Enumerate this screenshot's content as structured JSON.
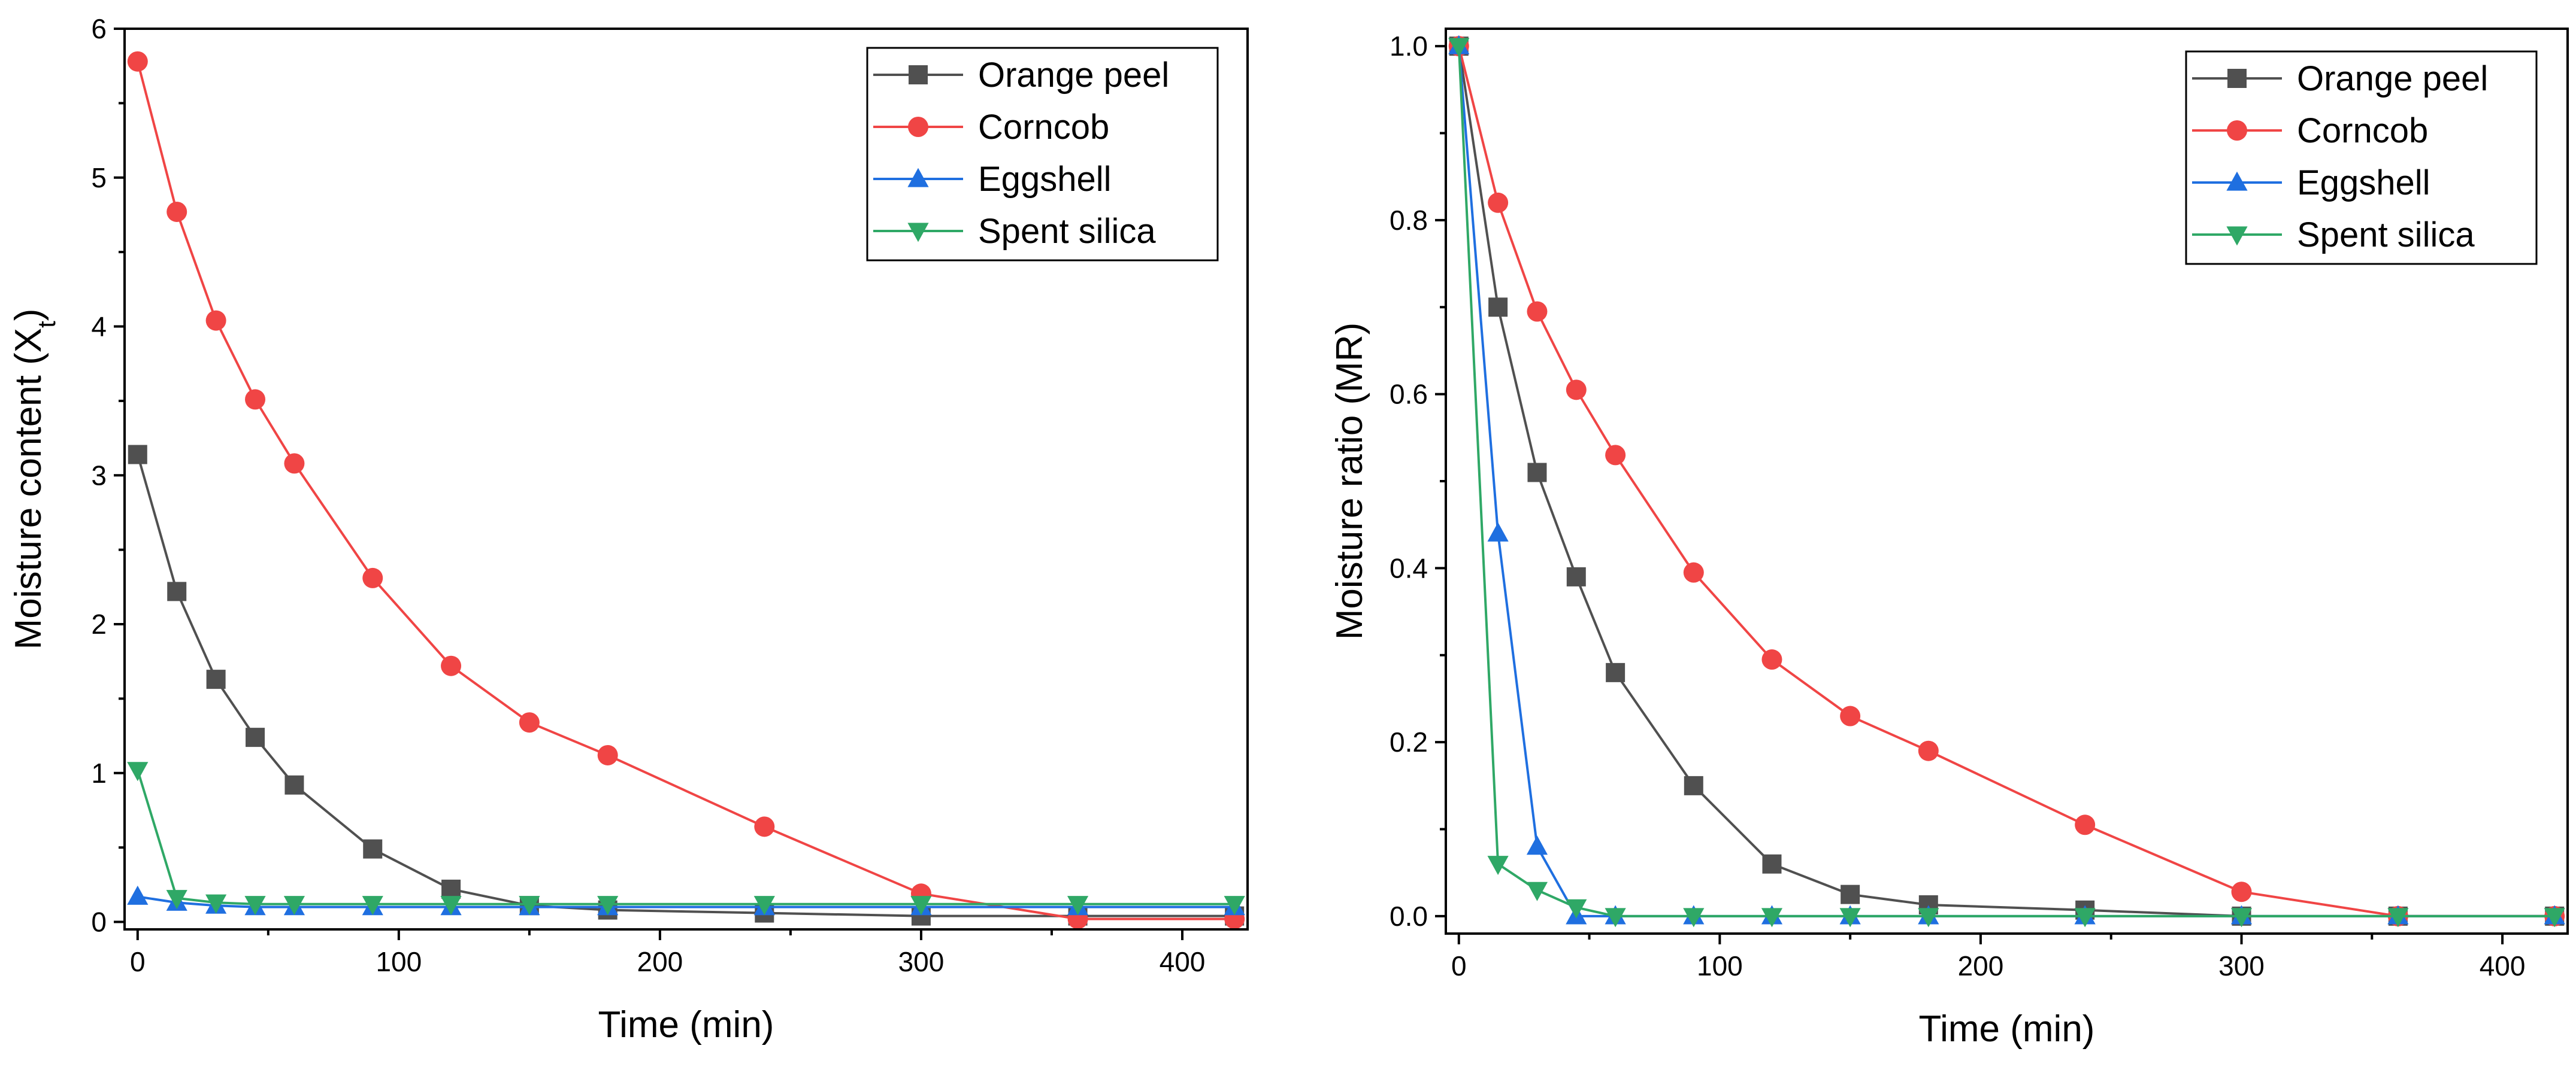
{
  "chart_data": [
    {
      "type": "line",
      "title": "",
      "xlabel": "Time (min)",
      "ylabel_main": "Moisture content (X",
      "ylabel_sub": "t",
      "ylabel_tail": ")",
      "xlim": [
        -5,
        425
      ],
      "ylim": [
        -0.05,
        6.0
      ],
      "xticks": [
        0,
        100,
        200,
        300,
        400
      ],
      "yticks": [
        0,
        1,
        2,
        3,
        4,
        5,
        6
      ],
      "legend_position": "top-right",
      "series": [
        {
          "name": "Orange peel",
          "color": "#505050",
          "marker": "square",
          "x": [
            0,
            15,
            30,
            45,
            60,
            90,
            120,
            150,
            180,
            240,
            300,
            360,
            420
          ],
          "y": [
            3.14,
            2.22,
            1.63,
            1.24,
            0.92,
            0.49,
            0.22,
            0.11,
            0.08,
            0.06,
            0.04,
            0.04,
            0.04
          ]
        },
        {
          "name": "Corncob",
          "color": "#f04545",
          "marker": "circle",
          "x": [
            0,
            15,
            30,
            45,
            60,
            90,
            120,
            150,
            180,
            240,
            300,
            360,
            420
          ],
          "y": [
            5.78,
            4.77,
            4.04,
            3.51,
            3.08,
            2.31,
            1.72,
            1.34,
            1.12,
            0.64,
            0.19,
            0.02,
            0.02
          ]
        },
        {
          "name": "Eggshell",
          "color": "#1f6fe0",
          "marker": "triangle-up",
          "x": [
            0,
            15,
            30,
            45,
            60,
            90,
            120,
            150,
            180,
            240,
            300,
            360,
            420
          ],
          "y": [
            0.17,
            0.13,
            0.11,
            0.1,
            0.1,
            0.1,
            0.1,
            0.1,
            0.1,
            0.1,
            0.1,
            0.1,
            0.1
          ]
        },
        {
          "name": "Spent silica",
          "color": "#2fa866",
          "marker": "triangle-down",
          "x": [
            0,
            15,
            30,
            45,
            60,
            90,
            120,
            150,
            180,
            240,
            300,
            360,
            420
          ],
          "y": [
            1.02,
            0.16,
            0.13,
            0.12,
            0.12,
            0.12,
            0.12,
            0.12,
            0.12,
            0.12,
            0.12,
            0.12,
            0.12
          ]
        }
      ]
    },
    {
      "type": "line",
      "title": "",
      "xlabel": "Time (min)",
      "ylabel_main": "Moisture ratio (MR)",
      "ylabel_sub": "",
      "ylabel_tail": "",
      "xlim": [
        -5,
        425
      ],
      "ylim": [
        -0.02,
        1.02
      ],
      "xticks": [
        0,
        100,
        200,
        300,
        400
      ],
      "yticks": [
        0.0,
        0.2,
        0.4,
        0.6,
        0.8,
        1.0
      ],
      "ytick_labels": [
        "0.0",
        "0.2",
        "0.4",
        "0.6",
        "0.8",
        "1.0"
      ],
      "legend_position": "top-right",
      "series": [
        {
          "name": "Orange peel",
          "color": "#505050",
          "marker": "square",
          "x": [
            0,
            15,
            30,
            45,
            60,
            90,
            120,
            150,
            180,
            240,
            300,
            360,
            420
          ],
          "y": [
            1.0,
            0.7,
            0.51,
            0.39,
            0.28,
            0.15,
            0.06,
            0.025,
            0.013,
            0.007,
            0.0,
            0.0,
            0.0
          ]
        },
        {
          "name": "Corncob",
          "color": "#f04545",
          "marker": "circle",
          "x": [
            0,
            15,
            30,
            45,
            60,
            90,
            120,
            150,
            180,
            240,
            300,
            360,
            420
          ],
          "y": [
            1.0,
            0.82,
            0.695,
            0.605,
            0.53,
            0.395,
            0.295,
            0.23,
            0.19,
            0.105,
            0.028,
            0.0,
            0.0
          ]
        },
        {
          "name": "Eggshell",
          "color": "#1f6fe0",
          "marker": "triangle-up",
          "x": [
            0,
            15,
            30,
            45,
            60,
            90,
            120,
            150,
            180,
            240,
            300,
            360,
            420
          ],
          "y": [
            1.0,
            0.44,
            0.08,
            0.0,
            0.0,
            0.0,
            0.0,
            0.0,
            0.0,
            0.0,
            0.0,
            0.0,
            0.0
          ]
        },
        {
          "name": "Spent silica",
          "color": "#2fa866",
          "marker": "triangle-down",
          "x": [
            0,
            15,
            30,
            45,
            60,
            90,
            120,
            150,
            180,
            240,
            300,
            360,
            420
          ],
          "y": [
            1.0,
            0.06,
            0.03,
            0.01,
            0.0,
            0.0,
            0.0,
            0.0,
            0.0,
            0.0,
            0.0,
            0.0,
            0.0
          ]
        }
      ]
    }
  ]
}
